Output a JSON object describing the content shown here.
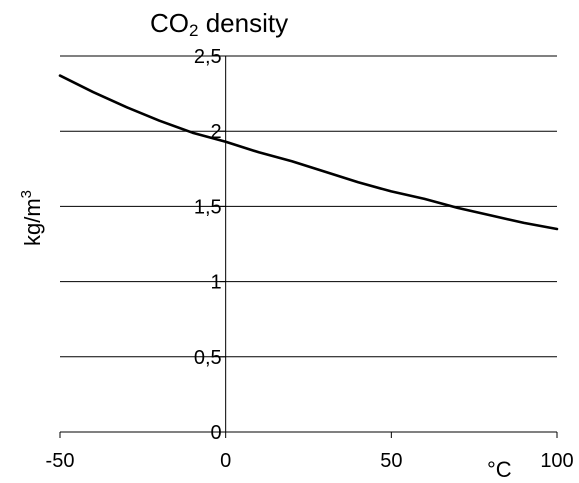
{
  "chart_data": {
    "type": "line",
    "title": {
      "main": "CO",
      "sub": "2",
      "rest": " density"
    },
    "ylabel": {
      "main": "kg/m",
      "sup": "3"
    },
    "xlabel": "°C",
    "xlim": [
      -50,
      100
    ],
    "ylim": [
      0,
      2.5
    ],
    "x_ticks": [
      -50,
      0,
      50,
      100
    ],
    "x_tick_labels": [
      "-50",
      "0",
      "50",
      "100"
    ],
    "y_ticks": [
      0,
      0.5,
      1,
      1.5,
      2,
      2.5
    ],
    "y_tick_labels": [
      "0",
      "0,5",
      "1",
      "1,5",
      "2",
      "2,5"
    ],
    "grid": "horizontal",
    "legend": "none",
    "colors": {
      "line": "#000000",
      "grid": "#000000",
      "background": "#ffffff"
    },
    "series": [
      {
        "x": [
          -50,
          -40,
          -30,
          -20,
          -10,
          0,
          10,
          20,
          30,
          40,
          50,
          60,
          70,
          80,
          90,
          100
        ],
        "values": [
          2.37,
          2.26,
          2.16,
          2.07,
          1.99,
          1.93,
          1.86,
          1.8,
          1.73,
          1.66,
          1.6,
          1.55,
          1.49,
          1.44,
          1.39,
          1.35
        ]
      }
    ]
  }
}
